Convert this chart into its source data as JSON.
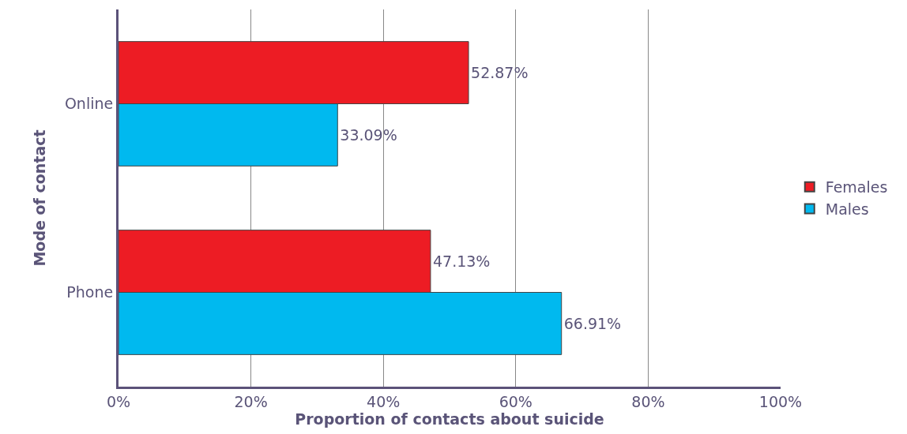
{
  "chart_data": {
    "type": "bar",
    "orientation": "horizontal",
    "xlabel": "Proportion of contacts about suicide",
    "ylabel": "Mode of contact",
    "categories": [
      "Online",
      "Phone"
    ],
    "series": [
      {
        "name": "Females",
        "color": "#ed1c24",
        "values": [
          52.87,
          47.13
        ],
        "value_labels": [
          "52.87%",
          "47.13%"
        ]
      },
      {
        "name": "Males",
        "color": "#00b9ef",
        "values": [
          33.09,
          66.91
        ],
        "value_labels": [
          "33.09%",
          "66.91%"
        ]
      }
    ],
    "xlim": [
      0,
      100
    ],
    "xticks": [
      {
        "value": 0,
        "label": "0%"
      },
      {
        "value": 20,
        "label": "20%"
      },
      {
        "value": 40,
        "label": "40%"
      },
      {
        "value": 60,
        "label": "60%"
      },
      {
        "value": 80,
        "label": "80%"
      },
      {
        "value": 100,
        "label": "100%"
      }
    ],
    "grid": "x",
    "legend": "right"
  }
}
